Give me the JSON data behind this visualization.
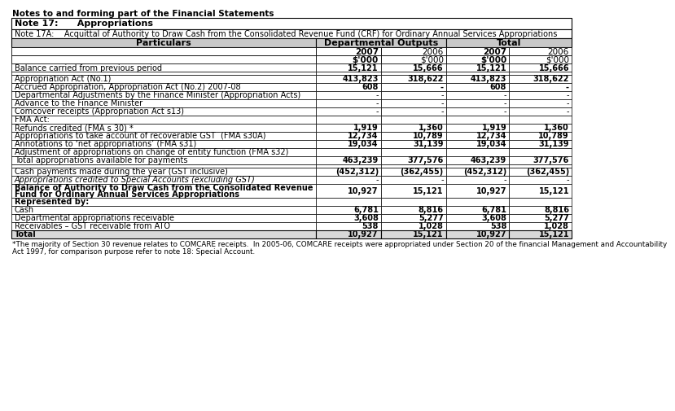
{
  "header_note": "Notes to and forming part of the Financial Statements",
  "note_title": "Note 17:      Appropriations",
  "note_subtitle": "Note 17A:    Acquittal of Authority to Draw Cash from the Consolidated Revenue Fund (CRF) for Ordinary Annual Services Appropriations",
  "rows": [
    {
      "label": "Balance carried from previous period",
      "v1": "15,121",
      "v2": "15,666",
      "v3": "15,121",
      "v4": "15,666",
      "bold_v": true,
      "bold_label": false,
      "italic": false,
      "spacer": false,
      "total_row": false
    },
    {
      "label": "",
      "v1": "",
      "v2": "",
      "v3": "",
      "v4": "",
      "bold_v": false,
      "bold_label": false,
      "italic": false,
      "spacer": true,
      "total_row": false
    },
    {
      "label": "Appropriation Act (No.1)",
      "v1": "413,823",
      "v2": "318,622",
      "v3": "413,823",
      "v4": "318,622",
      "bold_v": true,
      "bold_label": false,
      "italic": false,
      "spacer": false,
      "total_row": false
    },
    {
      "label": "Accrued Appropriation, Appropriation Act (No.2) 2007-08",
      "v1": "608",
      "v2": "-",
      "v3": "608",
      "v4": "-",
      "bold_v": true,
      "bold_label": false,
      "italic": false,
      "spacer": false,
      "total_row": false
    },
    {
      "label": "Departmental Adjustments by the Finance Minister (Appropriation Acts)",
      "v1": "-",
      "v2": "-",
      "v3": "-",
      "v4": "-",
      "bold_v": false,
      "bold_label": false,
      "italic": false,
      "spacer": false,
      "total_row": false
    },
    {
      "label": "Advance to the Finance Minister",
      "v1": "-",
      "v2": "-",
      "v3": "-",
      "v4": "-",
      "bold_v": false,
      "bold_label": false,
      "italic": false,
      "spacer": false,
      "total_row": false
    },
    {
      "label": "Comcover receipts (Appropriation Act s13)",
      "v1": "-",
      "v2": "-",
      "v3": "-",
      "v4": "-",
      "bold_v": false,
      "bold_label": false,
      "italic": false,
      "spacer": false,
      "total_row": false
    },
    {
      "label": "FMA Act:",
      "v1": "",
      "v2": "",
      "v3": "",
      "v4": "",
      "bold_v": false,
      "bold_label": false,
      "italic": false,
      "spacer": false,
      "total_row": false
    },
    {
      "label": "Refunds credited (FMA s 30) *",
      "v1": "1,919",
      "v2": "1,360",
      "v3": "1,919",
      "v4": "1,360",
      "bold_v": true,
      "bold_label": false,
      "italic": false,
      "spacer": false,
      "total_row": false
    },
    {
      "label": "Appropriations to take account of recoverable GST  (FMA s30A)",
      "v1": "12,734",
      "v2": "10,789",
      "v3": "12,734",
      "v4": "10,789",
      "bold_v": true,
      "bold_label": false,
      "italic": false,
      "spacer": false,
      "total_row": false
    },
    {
      "label": "Annotations to ‘net appropriations’ (FMA s31)",
      "v1": "19,034",
      "v2": "31,139",
      "v3": "19,034",
      "v4": "31,139",
      "bold_v": true,
      "bold_label": false,
      "italic": false,
      "spacer": false,
      "total_row": false
    },
    {
      "label": "Adjustment of appropriations on change of entity function (FMA s32)",
      "v1": "",
      "v2": "",
      "v3": "",
      "v4": "",
      "bold_v": false,
      "bold_label": false,
      "italic": false,
      "spacer": false,
      "total_row": false
    },
    {
      "label": "Total appropriations available for payments",
      "v1": "463,239",
      "v2": "377,576",
      "v3": "463,239",
      "v4": "377,576",
      "bold_v": true,
      "bold_label": false,
      "italic": false,
      "spacer": false,
      "total_row": false
    },
    {
      "label": "",
      "v1": "",
      "v2": "",
      "v3": "",
      "v4": "",
      "bold_v": false,
      "bold_label": false,
      "italic": false,
      "spacer": true,
      "total_row": false
    },
    {
      "label": "Cash payments made during the year (GST inclusive)",
      "v1": "(452,312)",
      "v2": "(362,455)",
      "v3": "(452,312)",
      "v4": "(362,455)",
      "bold_v": true,
      "bold_label": false,
      "italic": false,
      "spacer": false,
      "total_row": false
    },
    {
      "label": "Appropriations credited to Special Accounts (excluding GST)",
      "v1": "-",
      "v2": "-",
      "v3": "-",
      "v4": "-",
      "bold_v": false,
      "bold_label": false,
      "italic": true,
      "spacer": false,
      "total_row": false
    },
    {
      "label": "Balance of Authority to Draw Cash from the Consolidated Revenue\nFund for Ordinary Annual Services Appropriations",
      "v1": "10,927",
      "v2": "15,121",
      "v3": "10,927",
      "v4": "15,121",
      "bold_v": true,
      "bold_label": true,
      "italic": false,
      "spacer": false,
      "total_row": false
    },
    {
      "label": "Represented by:",
      "v1": "",
      "v2": "",
      "v3": "",
      "v4": "",
      "bold_v": false,
      "bold_label": true,
      "italic": false,
      "spacer": false,
      "total_row": false
    },
    {
      "label": "Cash",
      "v1": "6,781",
      "v2": "8,816",
      "v3": "6,781",
      "v4": "8,816",
      "bold_v": true,
      "bold_label": false,
      "italic": false,
      "spacer": false,
      "total_row": false
    },
    {
      "label": "Departmental appropriations receivable",
      "v1": "3,608",
      "v2": "5,277",
      "v3": "3,608",
      "v4": "5,277",
      "bold_v": true,
      "bold_label": false,
      "italic": false,
      "spacer": false,
      "total_row": false
    },
    {
      "label": "Receivables – GST receivable from ATO",
      "v1": "538",
      "v2": "1,028",
      "v3": "538",
      "v4": "1,028",
      "bold_v": true,
      "bold_label": false,
      "italic": false,
      "spacer": false,
      "total_row": false
    },
    {
      "label": "Total",
      "v1": "10,927",
      "v2": "15,121",
      "v3": "10,927",
      "v4": "15,121",
      "bold_v": true,
      "bold_label": true,
      "italic": false,
      "spacer": false,
      "total_row": true
    }
  ],
  "footnote_line1": "*The majority of Section 30 revenue relates to COMCARE receipts.  In 2005-06, COMCARE receipts were appropriated under Section 20 of the financial Management and Accountability",
  "footnote_line2": "Act 1997, for comparison purpose refer to note 18: Special Account.",
  "bg_color": "#ffffff",
  "header_bg": "#c8c8c8",
  "total_bg": "#d8d8d8"
}
